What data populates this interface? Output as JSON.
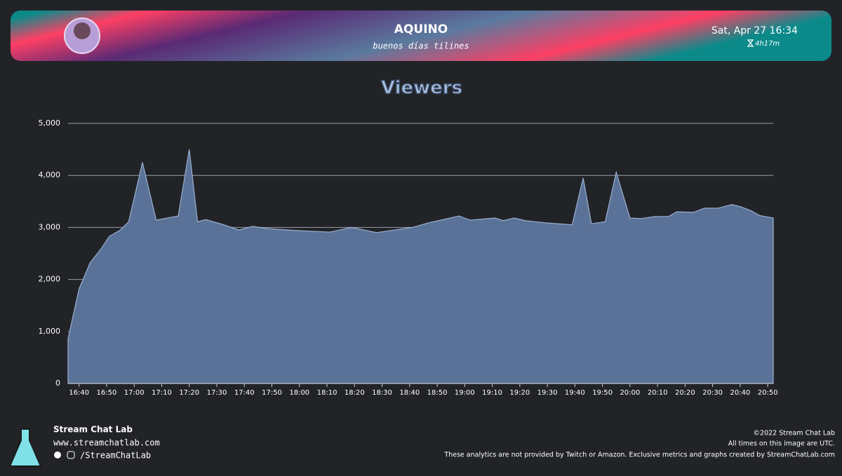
{
  "header": {
    "channel": "AQUINO",
    "stream_title": "buenos días tilines",
    "date": "Sat, Apr 27 16:34",
    "duration": "4h17m"
  },
  "chart_data": {
    "type": "area",
    "title": "Viewers",
    "x": [
      "16:36",
      "16:40",
      "16:44",
      "16:48",
      "16:51",
      "16:55",
      "16:58",
      "17:03",
      "17:08",
      "17:16",
      "17:20",
      "17:23",
      "17:26",
      "17:32",
      "17:38",
      "17:43",
      "17:48",
      "17:59",
      "18:11",
      "18:19",
      "18:28",
      "18:41",
      "18:47",
      "18:58",
      "19:02",
      "19:11",
      "19:14",
      "19:18",
      "19:22",
      "19:29",
      "19:39",
      "19:43",
      "19:46",
      "19:51",
      "19:55",
      "20:00",
      "20:04",
      "20:09",
      "20:14",
      "20:17",
      "20:23",
      "20:27",
      "20:32",
      "20:37",
      "20:40",
      "20:44",
      "20:47",
      "20:52"
    ],
    "series": [
      {
        "name": "Viewers",
        "color": "#5b7298",
        "values": [
          860,
          1820,
          2320,
          2590,
          2830,
          2950,
          3110,
          4250,
          3140,
          3220,
          4500,
          3110,
          3150,
          3060,
          2950,
          3020,
          2980,
          2940,
          2910,
          3000,
          2900,
          3000,
          3090,
          3220,
          3140,
          3180,
          3130,
          3180,
          3130,
          3090,
          3050,
          3950,
          3070,
          3110,
          4060,
          3180,
          3170,
          3210,
          3210,
          3300,
          3290,
          3370,
          3370,
          3440,
          3400,
          3320,
          3230,
          3180
        ]
      }
    ],
    "xlim": [
      "16:36",
      "20:52"
    ],
    "xticks": [
      "16:40",
      "16:50",
      "17:00",
      "17:10",
      "17:20",
      "17:30",
      "17:40",
      "17:50",
      "18:00",
      "18:10",
      "18:20",
      "18:30",
      "18:40",
      "18:50",
      "19:00",
      "19:10",
      "19:20",
      "19:30",
      "19:40",
      "19:50",
      "20:00",
      "20:10",
      "20:20",
      "20:30",
      "20:40",
      "20:50"
    ],
    "ylim": [
      0,
      5000
    ],
    "yticks": [
      0,
      {
        "value": 1000,
        "label": "1,000"
      },
      {
        "value": 2000,
        "label": "2,000"
      },
      {
        "value": 3000,
        "label": "3,000"
      },
      {
        "value": 4000,
        "label": "4,000"
      },
      {
        "value": 5000,
        "label": "5,000"
      }
    ],
    "grid": true
  },
  "footer": {
    "brand": "Stream Chat Lab",
    "url": "www.streamchatlab.com",
    "handle": "/StreamChatLab",
    "copyright": "©2022 Stream Chat Lab",
    "timezone_note": "All times on this image are UTC.",
    "disclaimer": "These analytics are not provided by Twitch or Amazon. Exclusive metrics and graphs created by StreamChatLab.com"
  }
}
